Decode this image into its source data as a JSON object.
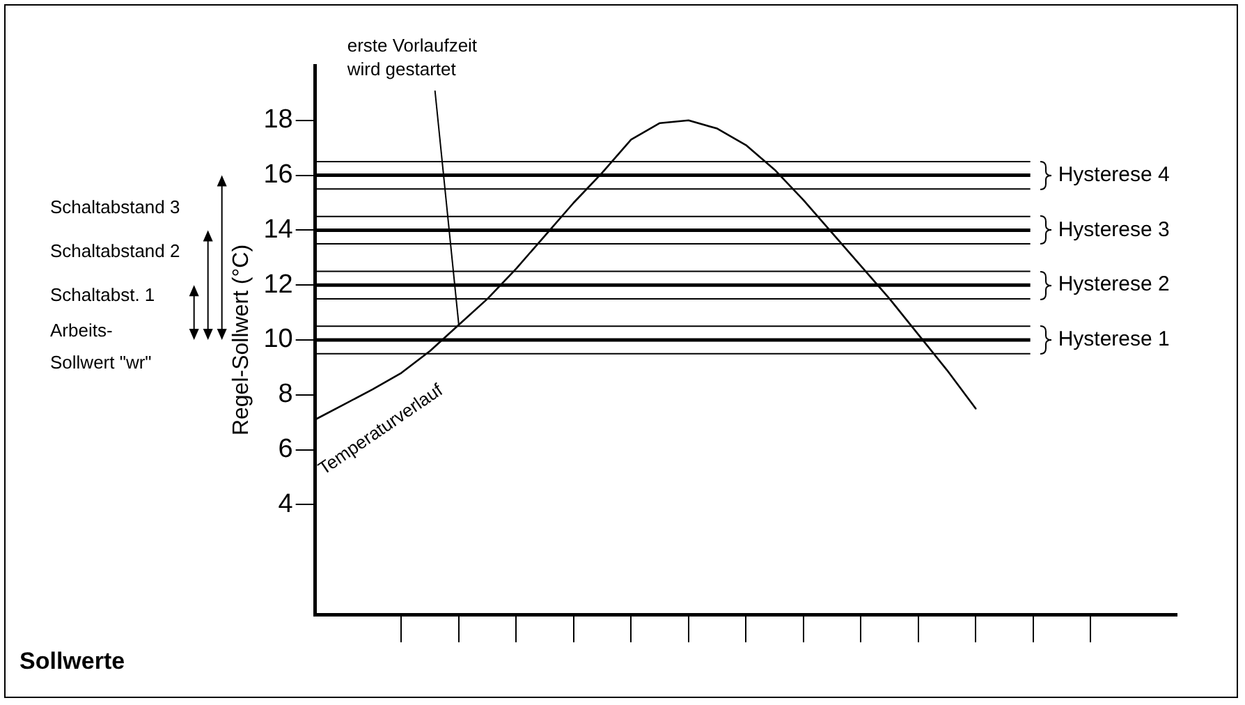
{
  "chart_data": {
    "type": "line",
    "title": "Sollwerte",
    "ylabel": "Regel-Sollwert (°C)",
    "categories": [
      null,
      null,
      null,
      null,
      null,
      null,
      null,
      null,
      null,
      null,
      null,
      null,
      null,
      null,
      null,
      null,
      null,
      null,
      null,
      null,
      null,
      null,
      null,
      null,
      null,
      null,
      null,
      null,
      null,
      null,
      null
    ],
    "series": [
      {
        "name": "Temperaturverlauf",
        "color": "#000000",
        "values": [
          7.1,
          7.65,
          8.2,
          8.8,
          9.6,
          10.55,
          11.5,
          12.6,
          13.8,
          15.0,
          16.1,
          17.3,
          17.9,
          18.0,
          17.7,
          17.1,
          16.2,
          15.1,
          13.9,
          12.7,
          11.5,
          10.2,
          8.9,
          7.5,
          null,
          null,
          null,
          null,
          null,
          null,
          null
        ]
      }
    ],
    "ylim": [
      0,
      20
    ],
    "yticks": [
      4,
      6,
      8,
      10,
      12,
      14,
      16,
      18
    ],
    "tick_labels": "y",
    "grid": false,
    "legend": false,
    "marker": "none",
    "line_style": "solid",
    "ref_lines": [
      {
        "axis": "y",
        "value": 9.5
      },
      {
        "axis": "y",
        "value": 10,
        "label": "Hysterese 1"
      },
      {
        "axis": "y",
        "value": 10.5
      },
      {
        "axis": "y",
        "value": 11.5
      },
      {
        "axis": "y",
        "value": 12,
        "label": "Hysterese 2"
      },
      {
        "axis": "y",
        "value": 12.5
      },
      {
        "axis": "y",
        "value": 13.5
      },
      {
        "axis": "y",
        "value": 14,
        "label": "Hysterese 3"
      },
      {
        "axis": "y",
        "value": 14.5
      },
      {
        "axis": "y",
        "value": 15.5
      },
      {
        "axis": "y",
        "value": 16,
        "label": "Hysterese 4"
      },
      {
        "axis": "y",
        "value": 16.5
      }
    ],
    "annotations": [
      "erste Vorlaufzeit wird gestartet",
      "Arbeits-Sollwert \"wr\"",
      "Schaltabst. 1",
      "Schaltabstand 2",
      "Schaltabstand 3"
    ]
  }
}
